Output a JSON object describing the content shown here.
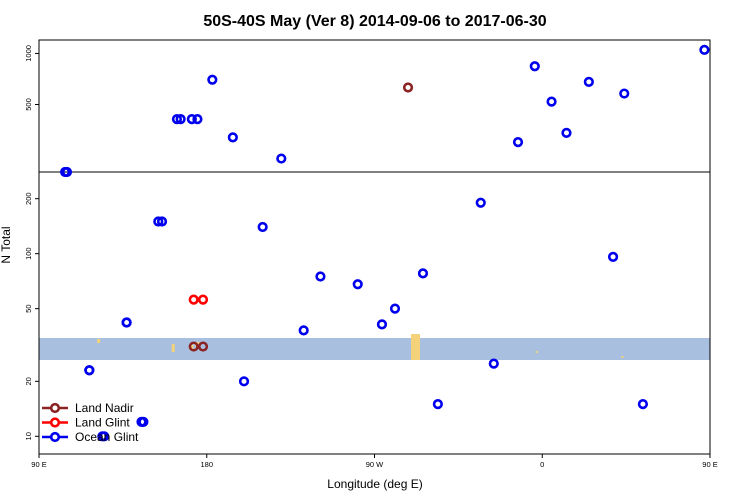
{
  "chart_data": {
    "type": "scatter",
    "title": "50S-40S May (Ver 8)   2014-09-06 to 2017-06-30",
    "xlabel": "Longitude (deg E)",
    "ylabel": "N Total",
    "xlim": [
      "90 E",
      "180"
    ],
    "x_ticks": [
      "90 E",
      "180",
      "90 W",
      "0",
      "90 E",
      "180"
    ],
    "y_scale": "log",
    "upper_panel": {
      "ylim": [
        200,
        1200
      ],
      "y_ticks": [
        "500",
        "1000"
      ]
    },
    "lower_panel": {
      "ylim": [
        8,
        280
      ],
      "y_ticks": [
        "10",
        "20",
        "50",
        "100",
        "200"
      ]
    },
    "grid": false,
    "legend_position": "bottom-left",
    "colors": {
      "land_nadir": "#8b2323",
      "land_glint": "#ff0000",
      "ocean_glint": "#0000ee",
      "band": "#a9bfdf",
      "land": "#f3d27a"
    },
    "series": [
      {
        "name": "Land Nadir",
        "points": [
          {
            "lon": -72,
            "n": 630
          },
          {
            "lon": 173,
            "n": 31
          },
          {
            "lon": 178,
            "n": 31
          }
        ]
      },
      {
        "name": "Land Glint",
        "points": [
          {
            "lon": 173,
            "n": 56
          },
          {
            "lon": 178,
            "n": 56
          }
        ]
      },
      {
        "name": "Ocean Glint",
        "points": [
          {
            "lon": 104,
            "n": 200
          },
          {
            "lon": 117,
            "n": 23
          },
          {
            "lon": 124,
            "n": 10
          },
          {
            "lon": 137,
            "n": 42
          },
          {
            "lon": 145,
            "n": 12
          },
          {
            "lon": 154,
            "n": 150
          },
          {
            "lon": 164,
            "n": 410
          },
          {
            "lon": 172,
            "n": 410
          },
          {
            "lon": -177,
            "n": 700
          },
          {
            "lon": -166,
            "n": 320
          },
          {
            "lon": -160,
            "n": 20
          },
          {
            "lon": -150,
            "n": 140
          },
          {
            "lon": -140,
            "n": 240
          },
          {
            "lon": -128,
            "n": 38
          },
          {
            "lon": -119,
            "n": 75
          },
          {
            "lon": -99,
            "n": 68
          },
          {
            "lon": -86,
            "n": 41
          },
          {
            "lon": -79,
            "n": 50
          },
          {
            "lon": -64,
            "n": 78
          },
          {
            "lon": -56,
            "n": 15
          },
          {
            "lon": -33,
            "n": 190
          },
          {
            "lon": -26,
            "n": 25
          },
          {
            "lon": -13,
            "n": 300
          },
          {
            "lon": -4,
            "n": 840
          },
          {
            "lon": 5,
            "n": 520
          },
          {
            "lon": 13,
            "n": 340
          },
          {
            "lon": 25,
            "n": 680
          },
          {
            "lon": 38,
            "n": 96
          },
          {
            "lon": 44,
            "n": 580
          },
          {
            "lon": 54,
            "n": 15
          },
          {
            "lon": 87,
            "n": 1050
          },
          {
            "lon": 105,
            "n": 200
          },
          {
            "lon": 117,
            "n": 23
          },
          {
            "lon": 125,
            "n": 10
          },
          {
            "lon": 137,
            "n": 42
          },
          {
            "lon": 146,
            "n": 12
          },
          {
            "lon": 156,
            "n": 150
          },
          {
            "lon": 166,
            "n": 410
          },
          {
            "lon": 175,
            "n": 410
          }
        ]
      }
    ]
  }
}
